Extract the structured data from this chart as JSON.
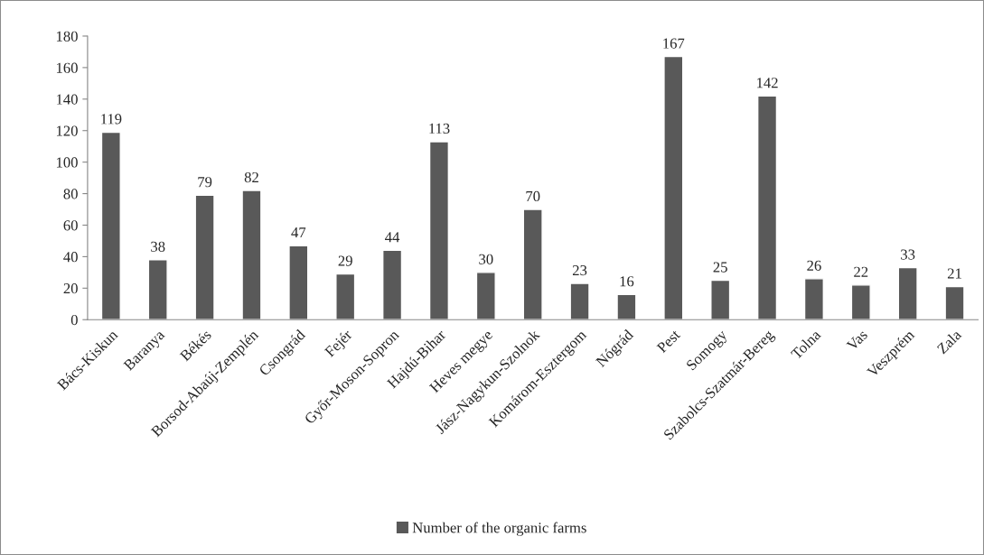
{
  "chart_data": {
    "type": "bar",
    "categories": [
      "Bács-Kiskun",
      "Baranya",
      "Békés",
      "Borsod-Abaúj-Zemplén",
      "Csongrád",
      "Fejér",
      "Győr-Moson-Sopron",
      "Hajdú-Bihar",
      "Heves megye",
      "Jász-Nagykun-Szolnok",
      "Komárom-Esztergom",
      "Nógrád",
      "Pest",
      "Somogy",
      "Szabolcs-Szatmár-Bereg",
      "Tolna",
      "Vas",
      "Veszprém",
      "Zala"
    ],
    "series": [
      {
        "name": "Number of the organic farms",
        "color": "#595959",
        "values": [
          119,
          38,
          79,
          82,
          47,
          29,
          44,
          113,
          30,
          70,
          23,
          16,
          167,
          25,
          142,
          26,
          22,
          33,
          21
        ]
      }
    ],
    "ylim": [
      0,
      180
    ],
    "yticks": [
      0,
      20,
      40,
      60,
      80,
      100,
      120,
      140,
      160,
      180
    ],
    "data_labels": true,
    "grid": false,
    "legend": "bottom"
  }
}
